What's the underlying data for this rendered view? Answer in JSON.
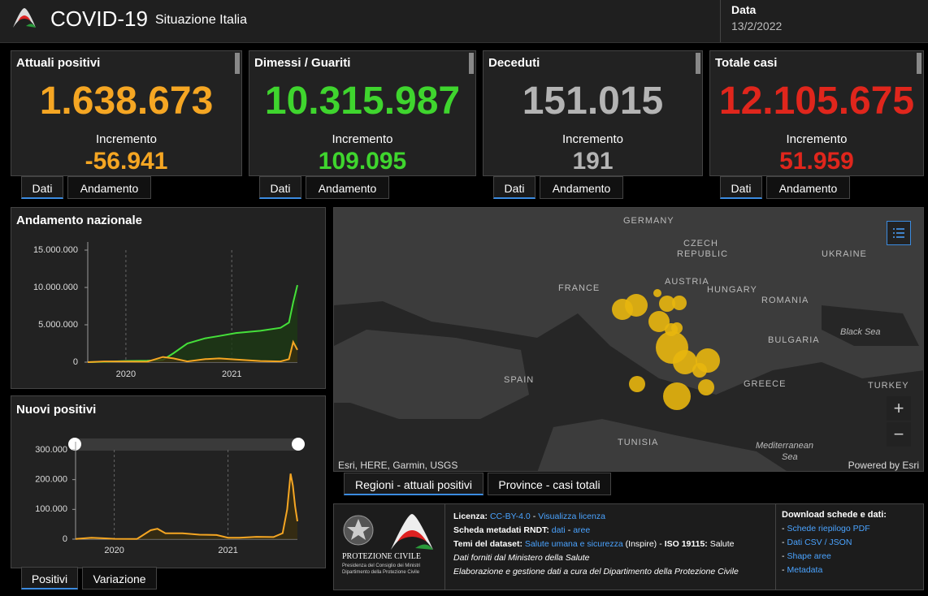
{
  "header": {
    "title": "COVID-19",
    "subtitle": "Situazione Italia",
    "date_label": "Data",
    "date": "13/2/2022"
  },
  "cards": [
    {
      "title": "Attuali positivi",
      "value": "1.638.673",
      "increment_label": "Incremento",
      "increment": "-56.941",
      "color": "#f5a623",
      "tabs": [
        "Dati",
        "Andamento"
      ]
    },
    {
      "title": "Dimessi / Guariti",
      "value": "10.315.987",
      "increment_label": "Incremento",
      "increment": "109.095",
      "color": "#3fd52e",
      "tabs": [
        "Dati",
        "Andamento"
      ]
    },
    {
      "title": "Deceduti",
      "value": "151.015",
      "increment_label": "Incremento",
      "increment": "191",
      "color": "#b4b4b4",
      "tabs": [
        "Dati",
        "Andamento"
      ]
    },
    {
      "title": "Totale casi",
      "value": "12.105.675",
      "increment_label": "Incremento",
      "increment": "51.959",
      "color": "#e0261c",
      "tabs": [
        "Dati",
        "Andamento"
      ]
    }
  ],
  "chart_data": [
    {
      "type": "line",
      "title": "Andamento nazionale",
      "x": [
        2019.64,
        2019.8,
        2020.0,
        2020.2,
        2020.35,
        2020.45,
        2020.58,
        2020.75,
        2020.88,
        2021.04,
        2021.27,
        2021.46,
        2021.54,
        2021.58,
        2021.62
      ],
      "series": [
        {
          "color": "#45e03a",
          "fill": "#1d3a14",
          "values": [
            0,
            50000,
            150000,
            200000,
            300000,
            1200000,
            2500000,
            3200000,
            3500000,
            3900000,
            4200000,
            4600000,
            5300000,
            8000000,
            10316000
          ]
        },
        {
          "color": "#f5a623",
          "fill": "#3a2e10",
          "values": [
            0,
            100000,
            80000,
            50000,
            700000,
            500000,
            100000,
            400000,
            500000,
            350000,
            150000,
            100000,
            400000,
            2700000,
            1639000
          ]
        }
      ],
      "xlim": [
        2019.64,
        2021.62
      ],
      "xticks": [
        2020,
        2021
      ],
      "ylim": [
        0,
        15000000
      ],
      "yticks": [
        0,
        {
          "value": 5000000,
          "label": "5.000.000"
        },
        {
          "value": 10000000,
          "label": "10.000.000"
        },
        {
          "value": 15000000,
          "label": "15.000.000"
        }
      ],
      "grid": true
    },
    {
      "type": "line",
      "title": "Nuovi positivi",
      "x": [
        2019.66,
        2019.8,
        2019.9,
        2020.0,
        2020.2,
        2020.32,
        2020.38,
        2020.45,
        2020.6,
        2020.75,
        2020.9,
        2021.0,
        2021.1,
        2021.25,
        2021.4,
        2021.48,
        2021.52,
        2021.55,
        2021.57,
        2021.59,
        2021.61
      ],
      "series": [
        {
          "color": "#f5a623",
          "fill": "#3a2e10",
          "values": [
            500,
            5000,
            3000,
            1000,
            800,
            30000,
            35000,
            20000,
            20000,
            15000,
            14000,
            5000,
            5000,
            8000,
            7000,
            20000,
            100000,
            220000,
            180000,
            110000,
            60000
          ]
        }
      ],
      "xlim": [
        2019.66,
        2021.61
      ],
      "xticks": [
        2020,
        2021
      ],
      "ylim": [
        0,
        300000
      ],
      "yticks": [
        0,
        {
          "value": 100000,
          "label": "100.000"
        },
        {
          "value": 200000,
          "label": "200.000"
        },
        {
          "value": 300000,
          "label": "300.000"
        }
      ],
      "grid": true,
      "tabs": [
        "Positivi",
        "Variazione"
      ]
    }
  ],
  "map": {
    "labels": [
      "GERMANY",
      "CZECH",
      "REPUBLIC",
      "UKRAINE",
      "FRANCE",
      "AUSTRIA",
      "HUNGARY",
      "ROMANIA",
      "Black Sea",
      "BULGARIA",
      "SPAIN",
      "GREECE",
      "TURKEY",
      "TUNISIA",
      "Mediterranean",
      "Sea"
    ],
    "attribution": "Esri, HERE, Garmin, USGS",
    "powered": "Powered by Esri",
    "zoom_in": "+",
    "zoom_out": "−",
    "tabs": [
      "Regioni - attuali positivi",
      "Province - casi totali"
    ]
  },
  "footer": {
    "logo": {
      "name": "PROTEZIONE CIVILE",
      "line1": "Presidenza del Consiglio dei Ministri",
      "line2": "Dipartimento della Protezione Civile"
    },
    "license": {
      "label": "Licenza:",
      "link1": "CC-BY-4.0",
      "sep": "-",
      "link2": "Visualizza licenza"
    },
    "metadata": {
      "label": "Scheda metadati RNDT:",
      "link1": "dati",
      "sep": "-",
      "link2": "aree"
    },
    "themes": {
      "label": "Temi del dataset:",
      "link": "Salute umana e sicurezza",
      "note": "(Inspire)",
      "sep": "-",
      "label2": "ISO 19115:",
      "value": "Salute"
    },
    "source": "Dati forniti dal Ministero della Salute",
    "credits": "Elaborazione e gestione dati a cura del Dipartimento della Protezione Civile",
    "download": {
      "title": "Download schede e dati:",
      "bullet": "-",
      "items": [
        "Schede riepilogo PDF",
        "Dati CSV / JSON",
        "Shape aree",
        "Metadata"
      ]
    }
  }
}
